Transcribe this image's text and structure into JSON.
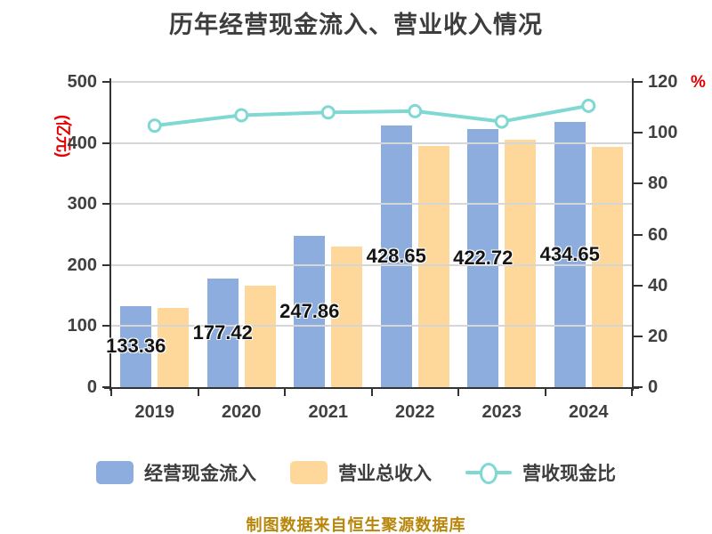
{
  "title": "历年经营现金流入、营业收入情况",
  "footer": "制图数据来自恒生聚源数据库",
  "colors": {
    "bar_cash_inflow": "#8cadde",
    "bar_revenue": "#fdd89a",
    "ratio_line": "#7fd8d2",
    "axis_text": "#404040",
    "axis_unit_red": "#e60000",
    "title_text": "#3d3d3d",
    "footer_text": "#b8860b",
    "grid_line": "#d6d6d6"
  },
  "chart_data": {
    "type": "bar",
    "subtype": "grouped bars with overlay line on secondary axis",
    "categories": [
      "2019",
      "2020",
      "2021",
      "2022",
      "2023",
      "2024"
    ],
    "series": [
      {
        "name": "经营现金流入",
        "type": "bar",
        "axis": "left",
        "color": "#8cadde",
        "values": [
          133.36,
          177.42,
          247.86,
          428.65,
          422.72,
          434.65
        ],
        "labels": [
          "133.36",
          "177.42",
          "247.86",
          "428.65",
          "422.72",
          "434.65"
        ]
      },
      {
        "name": "营业总收入",
        "type": "bar",
        "axis": "left",
        "color": "#fdd89a",
        "values": [
          130,
          166,
          230,
          395,
          405,
          393
        ],
        "labels": []
      },
      {
        "name": "营收现金比",
        "type": "line",
        "axis": "right",
        "color": "#7fd8d2",
        "marker": "circle-white-fill",
        "values": [
          102.8,
          106.9,
          108.0,
          108.5,
          104.4,
          110.6
        ]
      }
    ],
    "left_axis": {
      "unit": "(亿元)",
      "min": 0,
      "max": 500,
      "ticks": [
        0,
        100,
        200,
        300,
        400,
        500
      ]
    },
    "right_axis": {
      "unit": "%",
      "min": 0,
      "max": 120,
      "ticks": [
        0,
        20,
        40,
        60,
        80,
        100,
        120
      ]
    },
    "grid": true,
    "legend_position": "bottom"
  },
  "legend": {
    "items": [
      {
        "label": "经营现金流入",
        "swatch": "blue-rounded-rect"
      },
      {
        "label": "营业总收入",
        "swatch": "yellow-rounded-rect"
      },
      {
        "label": "营收现金比",
        "swatch": "teal-line-with-circle-marker"
      }
    ]
  }
}
